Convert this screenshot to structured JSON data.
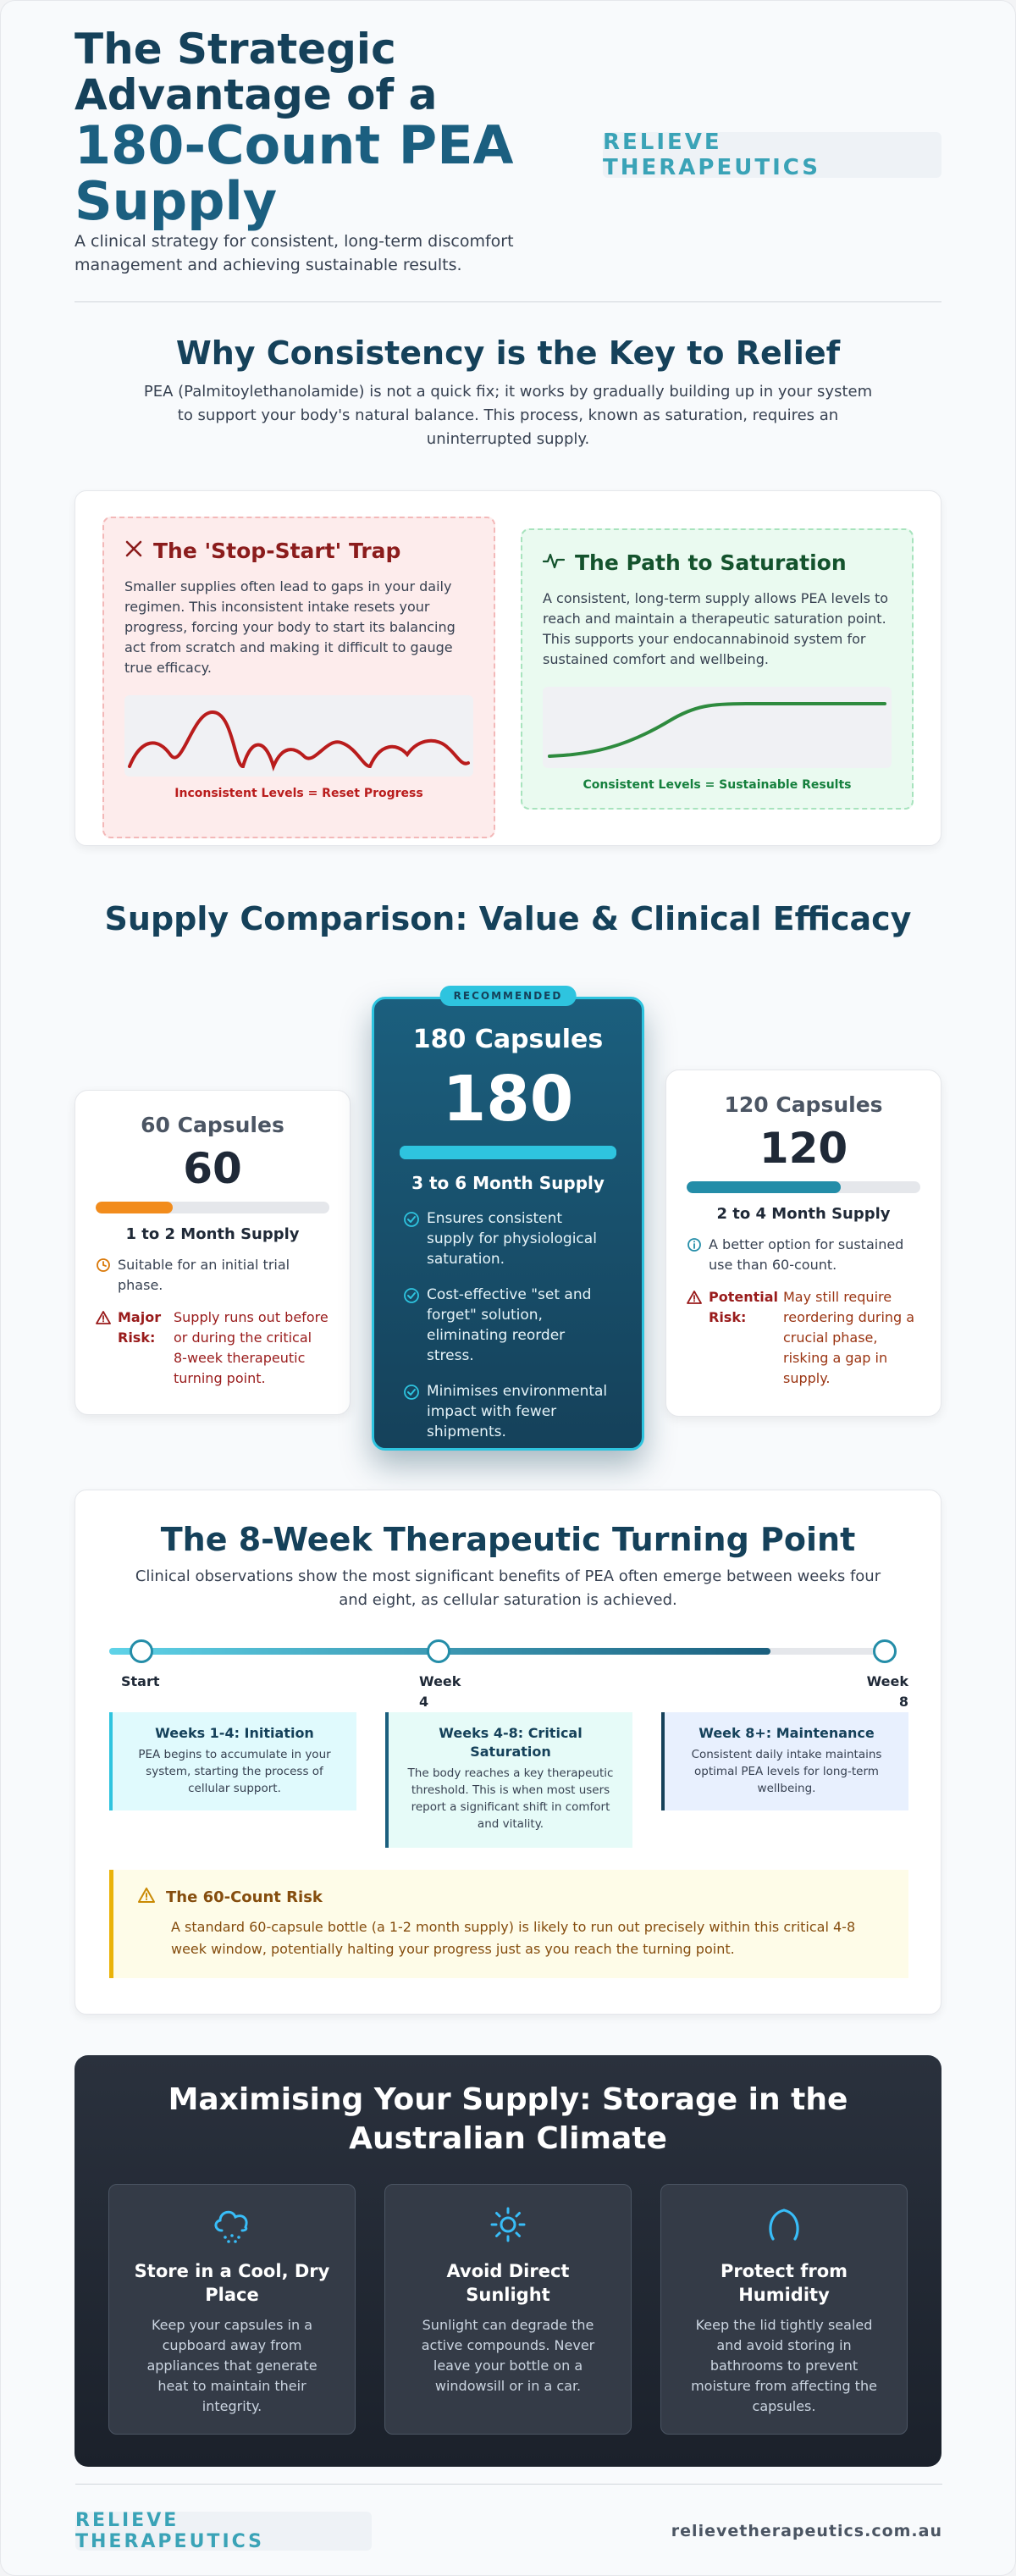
{
  "header": {
    "title_line1": "The Strategic Advantage of a",
    "title_line2": "180-Count PEA Supply",
    "subtitle": "A clinical strategy for consistent, long-term discomfort management and achieving sustainable results.",
    "logo": "RELIEVE THERAPEUTICS"
  },
  "consistency": {
    "title": "Why Consistency is the Key to Relief",
    "text": "PEA (Palmitoylethanolamide) is not a quick fix; it works by gradually building up in your system to support your body's natural balance. This process, known as saturation, requires an uninterrupted supply.",
    "trap": {
      "icon": "x-icon",
      "title": "The 'Stop-Start' Trap",
      "text": "Smaller supplies often lead to gaps in your daily regimen. This inconsistent intake resets your progress, forcing your body to start its balancing act from scratch and making it difficult to gauge true efficacy.",
      "caption": "Inconsistent Levels = Reset Progress",
      "color": "#b91c1c"
    },
    "path": {
      "icon": "pulse-icon",
      "title": "The Path to Saturation",
      "text": "A consistent, long-term supply allows PEA levels to reach and maintain a therapeutic saturation point. This supports your endocannabinoid system for sustained comfort and wellbeing.",
      "caption": "Consistent Levels = Sustainable Results",
      "color": "#15803d"
    }
  },
  "comparison": {
    "title": "Supply Comparison: Value & Clinical Efficacy",
    "plans": [
      {
        "name": "60 Capsules",
        "count": "60",
        "fill": 0.33,
        "duration": "1 to 2 Month Supply",
        "note": "Suitable for an initial trial phase.",
        "risk_label": "Major Risk:",
        "risk": "Supply runs out before or during the critical 8-week therapeutic turning point."
      },
      {
        "badge": "RECOMMENDED",
        "name": "180 Capsules",
        "count": "180",
        "fill": 1.0,
        "duration": "3 to 6 Month Supply",
        "features": [
          "Ensures consistent supply for physiological saturation.",
          "Cost-effective \"set and forget\" solution, eliminating reorder stress.",
          "Minimises environmental impact with fewer shipments."
        ]
      },
      {
        "name": "120 Capsules",
        "count": "120",
        "fill": 0.66,
        "duration": "2 to 4 Month Supply",
        "note": "A better option for sustained use than 60-count.",
        "risk_label": "Potential Risk:",
        "risk": "May still require reordering during a crucial phase, risking a gap in supply."
      }
    ]
  },
  "turning_point": {
    "title": "The 8-Week Therapeutic Turning Point",
    "text": "Clinical observations show the most significant benefits of PEA often emerge between weeks four and eight, as cellular saturation is achieved.",
    "progress": 0.84,
    "milestones": [
      "Start",
      "Week 4",
      "Week 8"
    ],
    "phases": [
      {
        "title": "Weeks 1-4: Initiation",
        "text": "PEA begins to accumulate in your system, starting the process of cellular support."
      },
      {
        "title": "Weeks 4-8: Critical Saturation",
        "text": "The body reaches a key therapeutic threshold. This is when most users report a significant shift in comfort and vitality."
      },
      {
        "title": "Week 8+: Maintenance",
        "text": "Consistent daily intake maintains optimal PEA levels for long-term wellbeing."
      }
    ],
    "risk": {
      "title": "The 60-Count Risk",
      "text": "A standard 60-capsule bottle (a 1-2 month supply) is likely to run out precisely within this critical 4-8 week window, potentially halting your progress just as you reach the turning point."
    }
  },
  "storage": {
    "title": "Maximising Your Supply: Storage in the Australian Climate",
    "tips": [
      {
        "icon": "cloud-snow-icon",
        "title": "Store in a Cool, Dry Place",
        "text": "Keep your capsules in a cupboard away from appliances that generate heat to maintain their integrity."
      },
      {
        "icon": "sun-icon",
        "title": "Avoid Direct Sunlight",
        "text": "Sunlight can degrade the active compounds. Never leave your bottle on a windowsill or in a car."
      },
      {
        "icon": "humidity-icon",
        "title": "Protect from Humidity",
        "text": "Keep the lid tightly sealed and avoid storing in bathrooms to prevent moisture from affecting the capsules."
      }
    ]
  },
  "footer": {
    "logo": "RELIEVE THERAPEUTICS",
    "url": "relievetherapeutics.com.au"
  }
}
